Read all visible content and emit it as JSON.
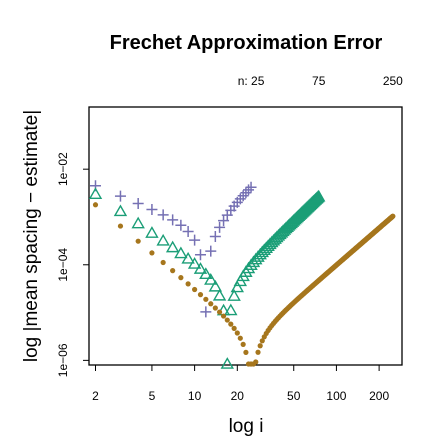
{
  "chart_data": {
    "type": "scatter",
    "title": "Frechet Approximation Error",
    "xlabel": "log i",
    "ylabel": "log |mean spacing − estimate|",
    "xscale": "log",
    "yscale": "log",
    "xlim": [
      1.8,
      290
    ],
    "ylim": [
      8e-07,
      0.2
    ],
    "xticks": [
      {
        "value": 2,
        "label": "2"
      },
      {
        "value": 5,
        "label": "5"
      },
      {
        "value": 10,
        "label": "10"
      },
      {
        "value": 20,
        "label": "20"
      },
      {
        "value": 50,
        "label": "50"
      },
      {
        "value": 100,
        "label": "100"
      },
      {
        "value": 200,
        "label": "200"
      }
    ],
    "yticks": [
      {
        "value": 1e-06,
        "label": "1e−06"
      },
      {
        "value": 0.0001,
        "label": "1e−04"
      },
      {
        "value": 0.01,
        "label": "1e−02"
      }
    ],
    "top_labels": [
      {
        "x": 25,
        "label": "n: 25"
      },
      {
        "x": 75,
        "label": "75"
      },
      {
        "x": 250,
        "label": "250"
      }
    ],
    "grid": false,
    "legend": "none",
    "series": [
      {
        "n": 25,
        "marker": "plus",
        "color": "#7570b3",
        "y0": 0.0045,
        "a": 1.22,
        "b": 3.92,
        "c": 0.055,
        "d": 1,
        "p": 2
      },
      {
        "n": 75,
        "marker": "triangle",
        "color": "#1b9e77",
        "y0": 0.003,
        "a": 2.04,
        "b": 3.86,
        "c": 0.1,
        "d": 1,
        "p": 2
      },
      {
        "n": 250,
        "marker": "dot",
        "color": "#a6761d",
        "y0": 0.0018,
        "a": 2.53,
        "b": 3.57,
        "c": 0.13,
        "d": 1,
        "p": 2
      }
    ]
  }
}
